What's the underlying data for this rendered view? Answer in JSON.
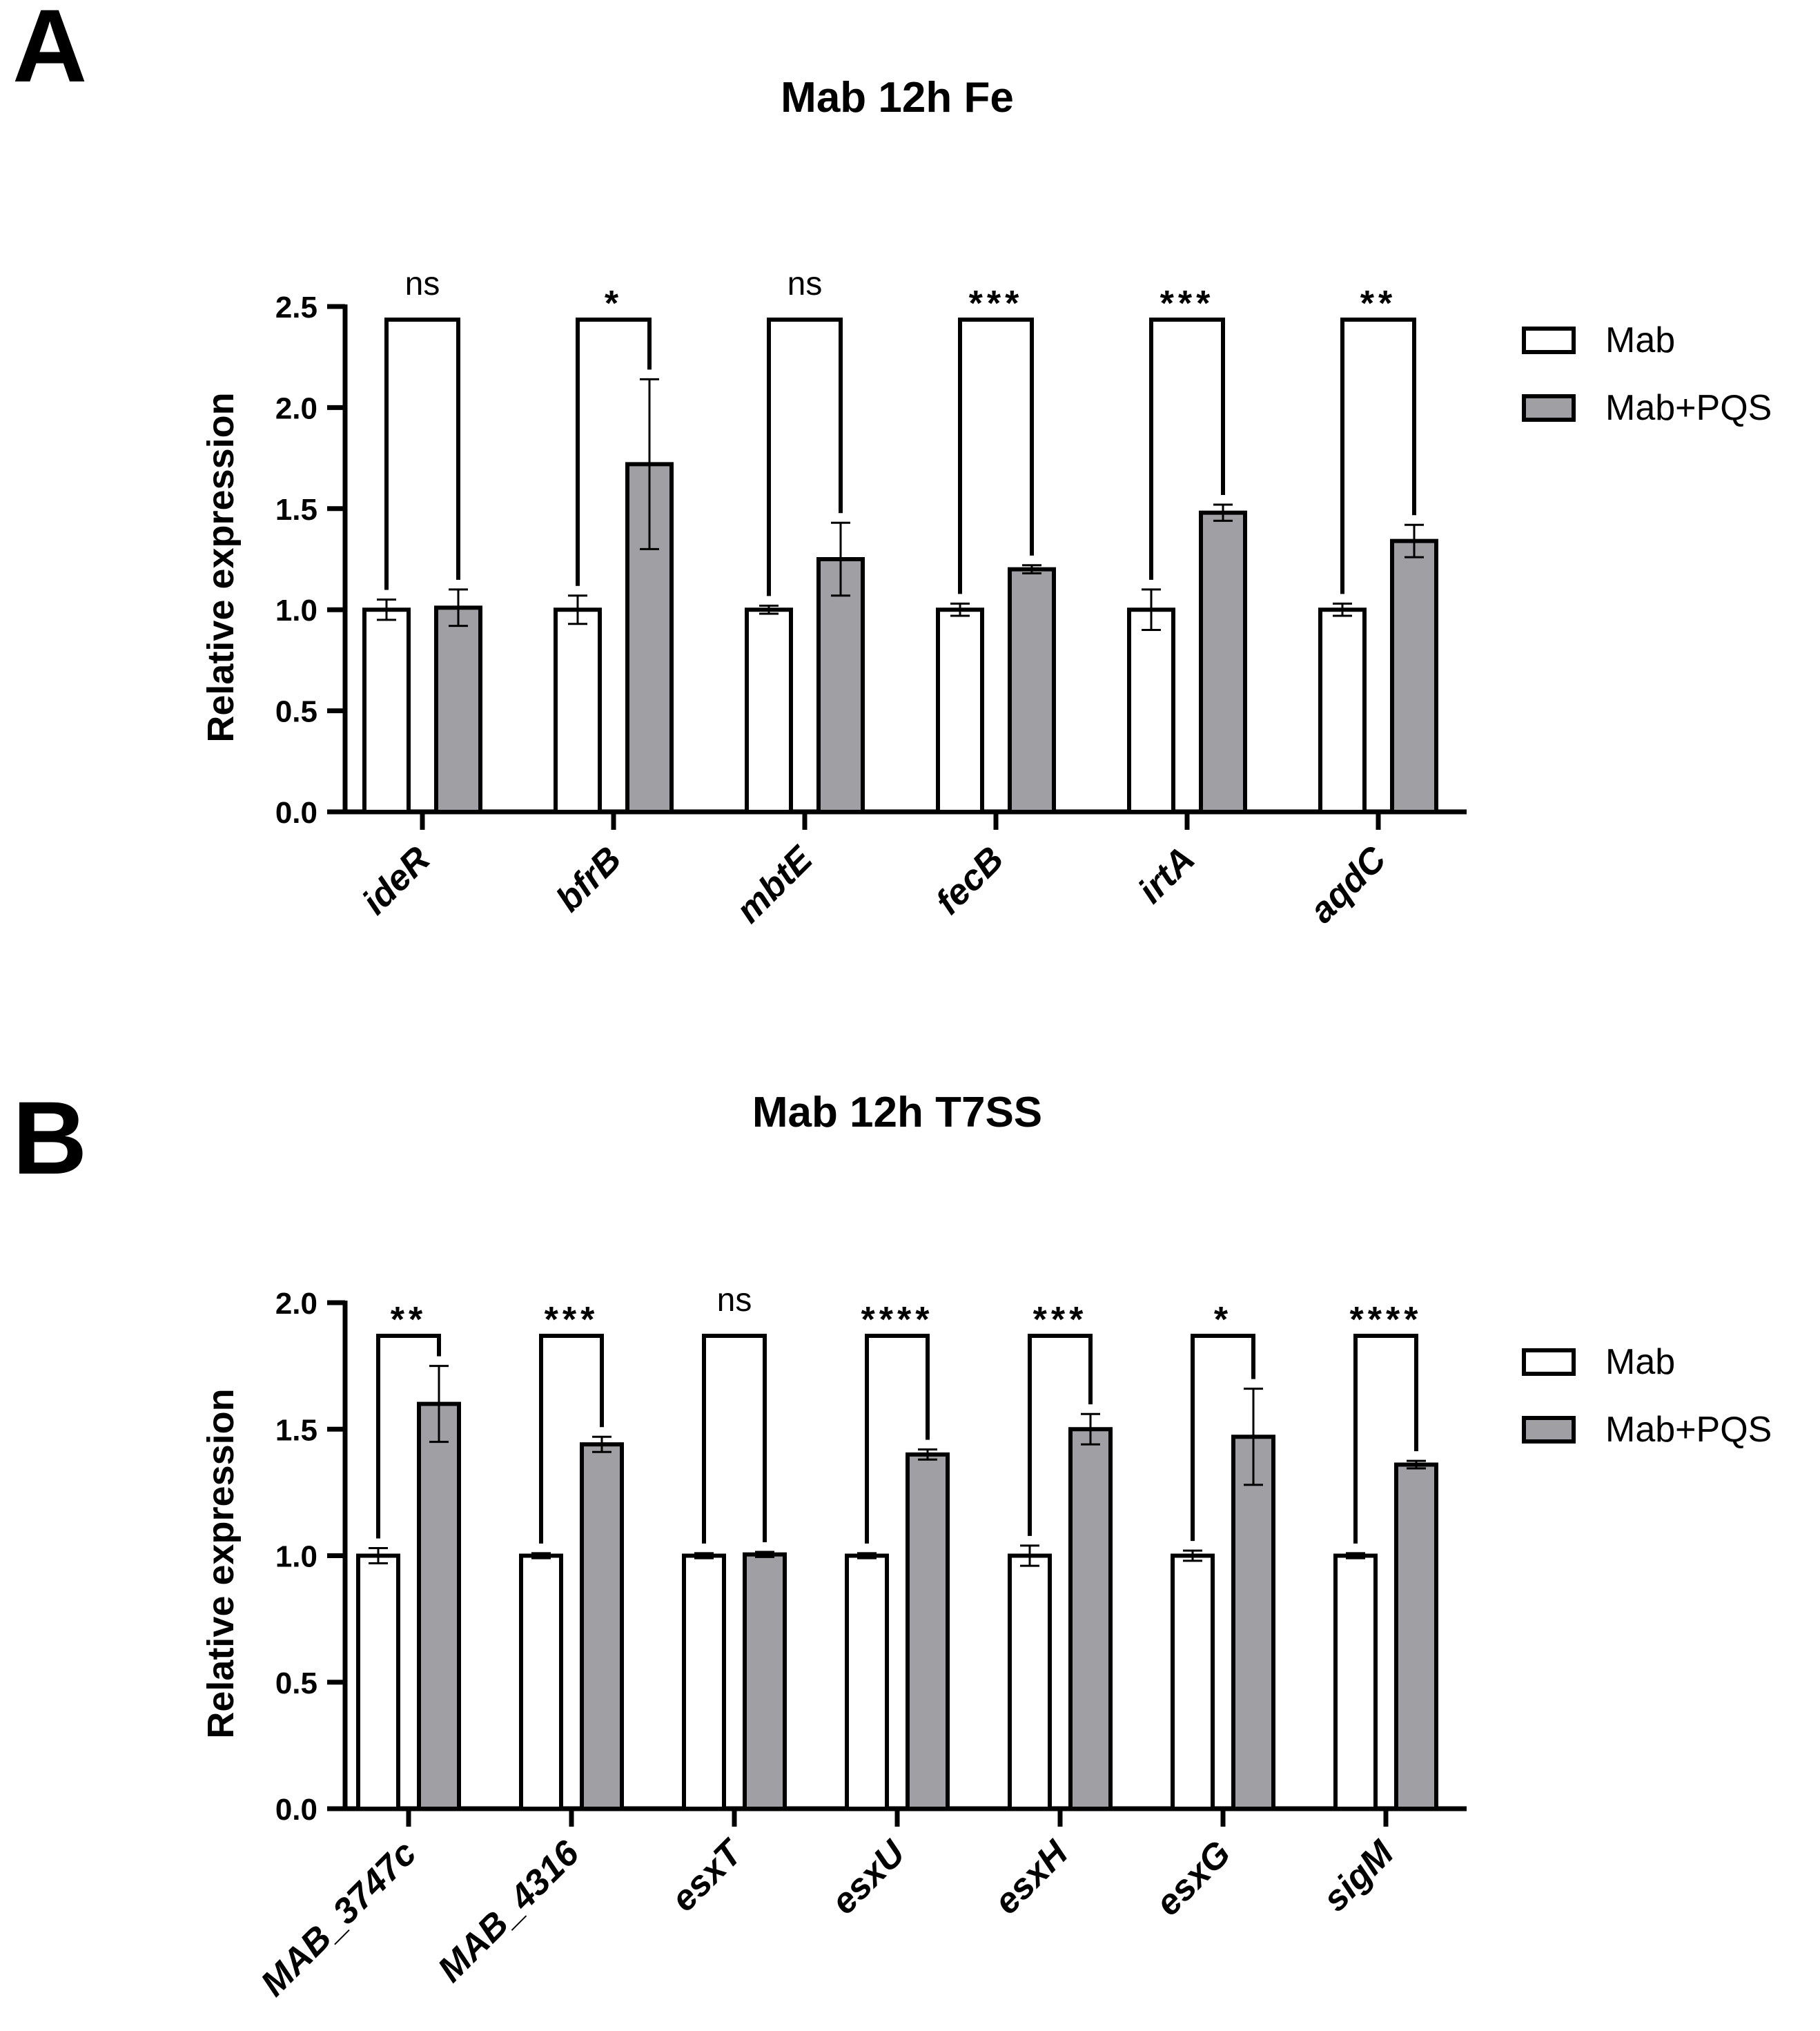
{
  "panels": [
    {
      "letter": "A",
      "title": "Mab 12h Fe",
      "chart_data": {
        "type": "bar",
        "title": "Mab 12h Fe",
        "xlabel": "",
        "ylabel": "Relative expression",
        "ylim": [
          0,
          2.5
        ],
        "yticks": [
          "0.0",
          "0.5",
          "1.0",
          "1.5",
          "2.0",
          "2.5"
        ],
        "categories": [
          "ideR",
          "bfrB",
          "mbtE",
          "fecB",
          "irtA",
          "aqdC"
        ],
        "series": [
          {
            "name": "Mab",
            "color": "#ffffff",
            "values": [
              1.0,
              1.0,
              1.0,
              1.0,
              1.0,
              1.0
            ],
            "errors": [
              0.05,
              0.07,
              0.02,
              0.03,
              0.1,
              0.03
            ]
          },
          {
            "name": "Mab+PQS",
            "color": "#a0a0a4",
            "values": [
              1.01,
              1.72,
              1.25,
              1.2,
              1.48,
              1.34
            ],
            "errors": [
              0.09,
              0.42,
              0.18,
              0.02,
              0.04,
              0.08
            ]
          }
        ],
        "significance": [
          "ns",
          "*",
          "ns",
          "***",
          "***",
          "**"
        ],
        "legend": {
          "position": "right",
          "entries": [
            "Mab",
            "Mab+PQS"
          ]
        }
      }
    },
    {
      "letter": "B",
      "title": "Mab 12h T7SS",
      "chart_data": {
        "type": "bar",
        "title": "Mab 12h T7SS",
        "xlabel": "",
        "ylabel": "Relative expression",
        "ylim": [
          0,
          2.0
        ],
        "yticks": [
          "0.0",
          "0.5",
          "1.0",
          "1.5",
          "2.0"
        ],
        "categories": [
          "MAB_3747c",
          "MAB_4316",
          "esxT",
          "esxU",
          "esxH",
          "esxG",
          "sigM"
        ],
        "series": [
          {
            "name": "Mab",
            "color": "#ffffff",
            "values": [
              1.0,
              1.0,
              1.0,
              1.0,
              1.0,
              1.0,
              1.0
            ],
            "errors": [
              0.03,
              0.01,
              0.01,
              0.01,
              0.04,
              0.02,
              0.01
            ]
          },
          {
            "name": "Mab+PQS",
            "color": "#a0a0a4",
            "values": [
              1.6,
              1.44,
              1.005,
              1.4,
              1.5,
              1.47,
              1.36
            ],
            "errors": [
              0.15,
              0.03,
              0.01,
              0.02,
              0.06,
              0.19,
              0.015
            ]
          }
        ],
        "significance": [
          "**",
          "***",
          "ns",
          "****",
          "***",
          "*",
          "****"
        ],
        "legend": {
          "position": "right",
          "entries": [
            "Mab",
            "Mab+PQS"
          ]
        }
      }
    }
  ]
}
